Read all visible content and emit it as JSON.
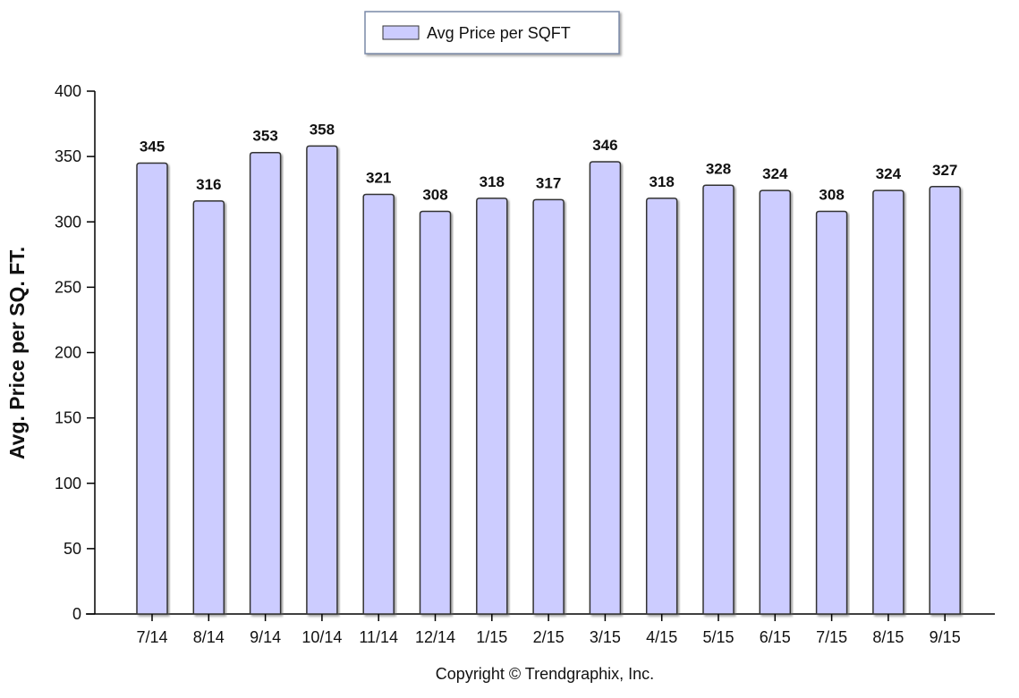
{
  "chart_data": {
    "type": "bar",
    "categories": [
      "7/14",
      "8/14",
      "9/14",
      "10/14",
      "11/14",
      "12/14",
      "1/15",
      "2/15",
      "3/15",
      "4/15",
      "5/15",
      "6/15",
      "7/15",
      "8/15",
      "9/15"
    ],
    "series": [
      {
        "name": "Avg Price per SQFT",
        "values": [
          345,
          316,
          353,
          358,
          321,
          308,
          318,
          317,
          346,
          318,
          328,
          324,
          308,
          324,
          327
        ]
      }
    ],
    "title": "",
    "xlabel": "",
    "ylabel": "Avg. Price per SQ. FT.",
    "ylim": [
      0,
      400
    ],
    "yticks": [
      0,
      50,
      100,
      150,
      200,
      250,
      300,
      350,
      400
    ],
    "data_labels": true,
    "grid": false,
    "legend_position": "top-center",
    "colors": {
      "bar_fill": "#ccccff",
      "bar_stroke": "#333333",
      "axis": "#000000"
    }
  },
  "footer": {
    "copyright": "Copyright © Trendgraphix, Inc."
  }
}
